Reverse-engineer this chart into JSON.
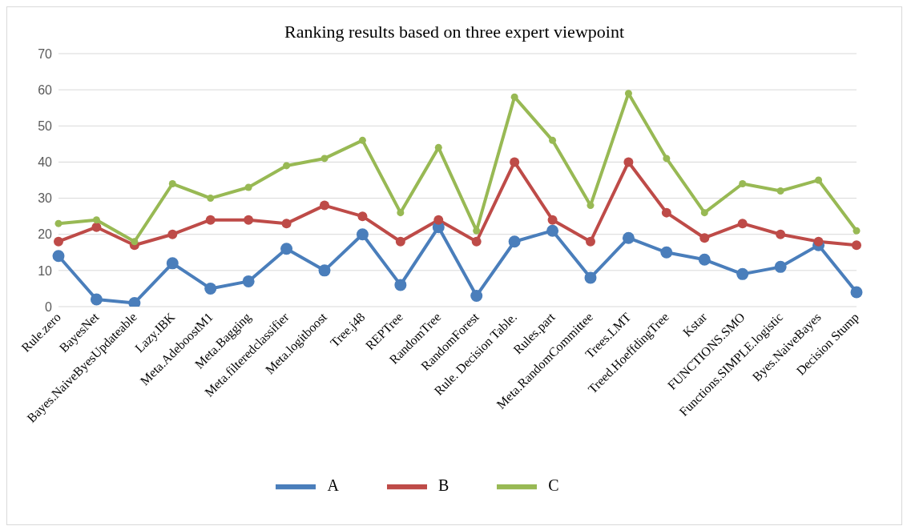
{
  "chart_data": {
    "type": "line",
    "title": "Ranking results based on three expert viewpoint",
    "categories": [
      "Rule.zero",
      "BayesNet",
      "Bayes.NaiveByesUpdateable",
      "Lazy.IBK",
      "Meta.AdeboostM1",
      "Meta.Bagging",
      "Meta.filteredclassifier",
      "Meta.logitboost",
      "Tree.j48",
      "REPTree",
      "RandomTree",
      "RandomForest",
      "Rule. Decision Table.",
      "Rules.part",
      "Meta.RandomCommittee",
      "Trees.LMT",
      "Treed.HoeffdingTree",
      "Kstar",
      "FUNCTIONS.SMO",
      "Functions.SIMPLE.logistic",
      "Byes.NaiveBayes",
      "Decision Stump"
    ],
    "series": [
      {
        "name": "A",
        "color": "#4a7ebb",
        "values": [
          14,
          2,
          1,
          12,
          5,
          7,
          16,
          10,
          20,
          6,
          22,
          3,
          18,
          21,
          8,
          19,
          15,
          13,
          9,
          11,
          17,
          4
        ]
      },
      {
        "name": "B",
        "color": "#be4b48",
        "values": [
          18,
          22,
          17,
          20,
          24,
          24,
          23,
          28,
          25,
          18,
          24,
          18,
          40,
          24,
          18,
          40,
          26,
          19,
          23,
          20,
          18,
          17
        ]
      },
      {
        "name": "C",
        "color": "#98b954",
        "values": [
          23,
          24,
          18,
          34,
          30,
          33,
          39,
          41,
          46,
          26,
          44,
          21,
          58,
          46,
          28,
          59,
          41,
          26,
          34,
          32,
          35,
          21
        ]
      }
    ],
    "ylim": [
      0,
      70
    ],
    "yticks": [
      0,
      10,
      20,
      30,
      40,
      50,
      60,
      70
    ],
    "grid": "y",
    "legend": "bottom",
    "marker": "circle",
    "line_style": "solid"
  }
}
